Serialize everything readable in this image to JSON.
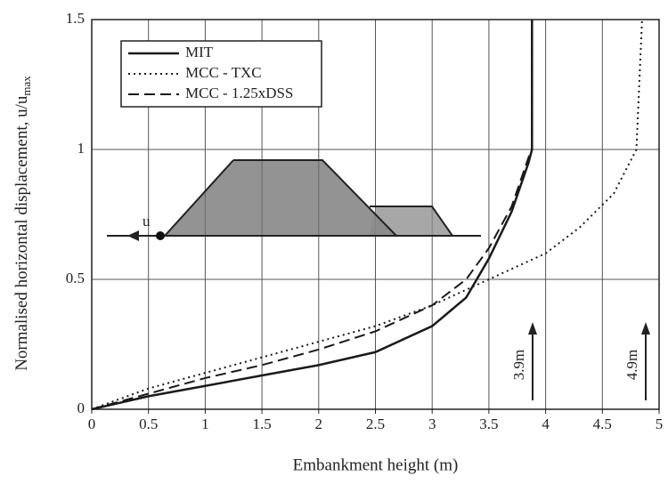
{
  "chart_data": {
    "type": "line",
    "xlabel": "Embankment height (m)",
    "ylabel": "Normalised horizontal displacement, u/u",
    "ylabel_subscript": "max",
    "xlim": [
      0,
      5
    ],
    "ylim": [
      0,
      1.5
    ],
    "xticks": [
      0,
      0.5,
      1,
      1.5,
      2,
      2.5,
      3,
      3.5,
      4,
      4.5,
      5
    ],
    "yticks": [
      0,
      0.5,
      1,
      1.5
    ],
    "grid": true,
    "legend": "top-left",
    "series": [
      {
        "name": "MIT",
        "color": "#1a1a1a",
        "dash": "solid",
        "x": [
          0,
          0.5,
          1,
          1.5,
          2,
          2.5,
          3,
          3.3,
          3.5,
          3.7,
          3.85,
          3.88,
          3.88
        ],
        "values": [
          0,
          0.05,
          0.09,
          0.13,
          0.17,
          0.22,
          0.32,
          0.43,
          0.58,
          0.76,
          0.95,
          1.0,
          1.5
        ]
      },
      {
        "name": "MCC - TXC",
        "color": "#1a1a1a",
        "dash": "dotted",
        "x": [
          0,
          0.5,
          1,
          1.5,
          2,
          2.5,
          3,
          3.5,
          4,
          4.3,
          4.6,
          4.8,
          4.85
        ],
        "values": [
          0,
          0.08,
          0.14,
          0.2,
          0.26,
          0.32,
          0.4,
          0.5,
          0.6,
          0.7,
          0.83,
          1.0,
          1.5
        ]
      },
      {
        "name": "MCC - 1.25xDSS",
        "color": "#1a1a1a",
        "dash": "dashed",
        "x": [
          0,
          0.5,
          1,
          1.5,
          2,
          2.5,
          3,
          3.3,
          3.5,
          3.7,
          3.85,
          3.88,
          3.88
        ],
        "values": [
          0,
          0.06,
          0.12,
          0.17,
          0.23,
          0.3,
          0.4,
          0.5,
          0.62,
          0.78,
          0.97,
          1.0,
          1.5
        ]
      }
    ],
    "annotations": [
      "3.9m",
      "4.9m"
    ],
    "diagram_label": "u"
  }
}
